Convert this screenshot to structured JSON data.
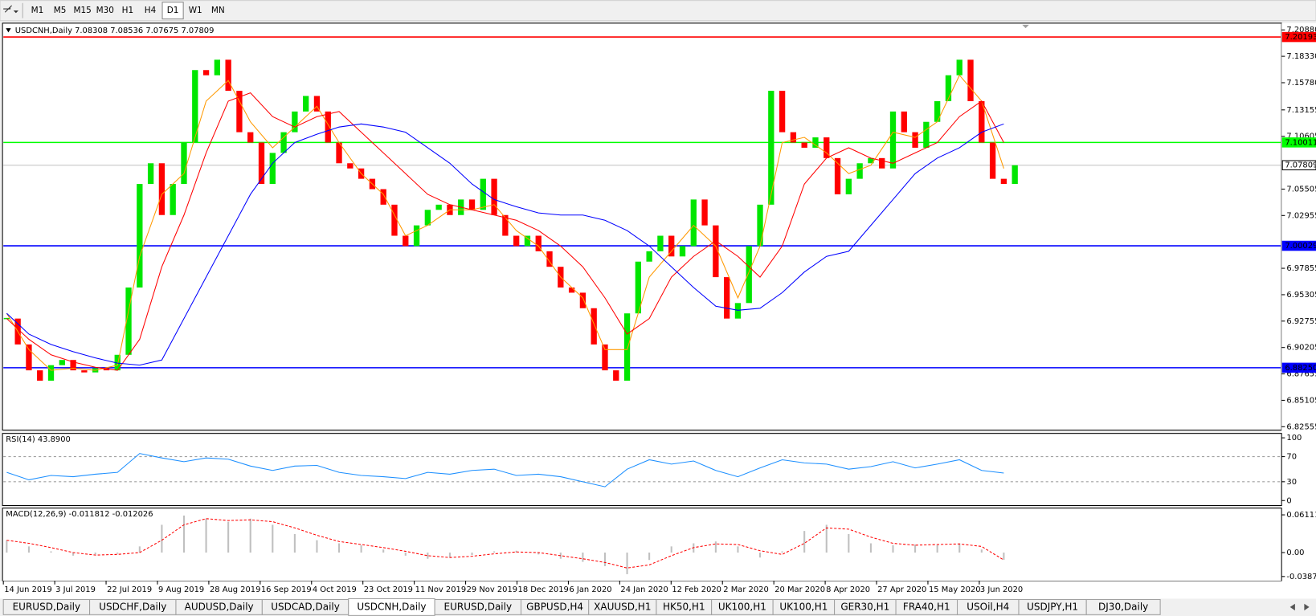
{
  "toolbar": {
    "timeframes": [
      "M1",
      "M5",
      "M15",
      "M30",
      "H1",
      "H4",
      "D1",
      "W1",
      "MN"
    ],
    "active": 6
  },
  "tabs": {
    "items": [
      "EURUSD,Daily",
      "USDCHF,Daily",
      "AUDUSD,Daily",
      "USDCAD,Daily",
      "USDCNH,Daily",
      "EURUSD,Daily",
      "GBPUSD,H4",
      "XAUUSD,H1",
      "HK50,H1",
      "UK100,H1",
      "UK100,H1",
      "GER30,H1",
      "FRA40,H1",
      "USOil,H4",
      "USDJPY,H1",
      "DJ30,Daily"
    ],
    "active": 4
  },
  "chart_data": [
    {
      "type": "candlestick",
      "header": "USDCNH,Daily  7.08308 7.08536 7.07675 7.07809",
      "up_color": "#00e600",
      "down_color": "#ff0000",
      "closes": [
        6.93,
        6.905,
        6.88,
        6.87,
        6.885,
        6.89,
        6.88,
        6.878,
        6.882,
        6.88,
        6.895,
        6.96,
        7.06,
        7.08,
        7.03,
        7.06,
        7.1,
        7.17,
        7.165,
        7.18,
        7.15,
        7.11,
        7.1,
        7.06,
        7.09,
        7.11,
        7.13,
        7.145,
        7.13,
        7.1,
        7.08,
        7.075,
        7.065,
        7.055,
        7.04,
        7.01,
        7.0,
        7.02,
        7.035,
        7.04,
        7.03,
        7.045,
        7.035,
        7.065,
        7.03,
        7.01,
        7.0,
        7.01,
        6.995,
        6.98,
        6.96,
        6.955,
        6.94,
        6.905,
        6.88,
        6.87,
        6.935,
        6.985,
        6.995,
        7.01,
        6.99,
        7.0,
        7.045,
        7.02,
        6.97,
        6.93,
        6.945,
        7.0,
        7.04,
        7.15,
        7.11,
        7.1,
        7.095,
        7.105,
        7.085,
        7.05,
        7.065,
        7.08,
        7.085,
        7.075,
        7.13,
        7.11,
        7.095,
        7.12,
        7.14,
        7.165,
        7.18,
        7.14,
        7.1,
        7.065,
        7.06,
        7.07809
      ],
      "moving_averages": [
        {
          "color": "#ff9900",
          "values": [
            6.935,
            6.9,
            6.88,
            6.882,
            6.88,
            6.885,
            6.99,
            7.05,
            7.07,
            7.14,
            7.16,
            7.12,
            7.095,
            7.115,
            7.135,
            7.1,
            7.07,
            7.05,
            7.01,
            7.02,
            7.035,
            7.035,
            7.04,
            7.015,
            7.0,
            6.97,
            6.95,
            6.9,
            6.9,
            6.97,
            6.995,
            7.02,
            7.0,
            6.95,
            7.0,
            7.1,
            7.105,
            7.09,
            7.07,
            7.078,
            7.11,
            7.105,
            7.12,
            7.165,
            7.14,
            7.075
          ]
        },
        {
          "color": "#ff0000",
          "values": [
            6.93,
            6.91,
            6.895,
            6.888,
            6.883,
            6.88,
            6.91,
            6.98,
            7.03,
            7.09,
            7.14,
            7.148,
            7.125,
            7.115,
            7.125,
            7.13,
            7.11,
            7.09,
            7.07,
            7.05,
            7.04,
            7.035,
            7.03,
            7.025,
            7.015,
            7.0,
            6.98,
            6.95,
            6.915,
            6.93,
            6.97,
            6.99,
            7.005,
            6.99,
            6.97,
            7.0,
            7.06,
            7.085,
            7.095,
            7.085,
            7.08,
            7.09,
            7.1,
            7.125,
            7.14,
            7.1
          ]
        },
        {
          "color": "#0000ff",
          "values": [
            6.935,
            6.915,
            6.905,
            6.898,
            6.892,
            6.887,
            6.885,
            6.89,
            6.93,
            6.97,
            7.01,
            7.05,
            7.08,
            7.1,
            7.108,
            7.115,
            7.118,
            7.115,
            7.11,
            7.095,
            7.08,
            7.06,
            7.045,
            7.038,
            7.032,
            7.03,
            7.03,
            7.025,
            7.015,
            7.0,
            6.98,
            6.96,
            6.942,
            6.938,
            6.94,
            6.955,
            6.975,
            6.99,
            6.995,
            7.02,
            7.045,
            7.07,
            7.085,
            7.095,
            7.11,
            7.118
          ]
        }
      ],
      "ylim": [
        6.8223,
        7.2145
      ],
      "yticks": [
        {
          "value": 7.2088,
          "label": "7.20880"
        },
        {
          "value": 7.1833,
          "label": "7.18330"
        },
        {
          "value": 7.1578,
          "label": "7.15780"
        },
        7.13155,
        7.10605,
        7.05505,
        7.02955,
        6.97855,
        6.95305,
        6.92755,
        6.90205,
        6.87655,
        6.85105,
        6.82555
      ],
      "levels": [
        {
          "value": 7.20193,
          "label": "7.20193",
          "color": "#ff0000",
          "text_color": "#ffffff"
        },
        {
          "value": 7.10011,
          "label": "7.10011",
          "color": "#00ff00",
          "text_color": "#ffffff"
        },
        {
          "value": 7.07809,
          "label": "7.07809",
          "color": "#c0c0c0",
          "text_color": "#000000"
        },
        {
          "value": 7.00029,
          "label": "7.00029",
          "color": "#0000ff",
          "text_color": "#ffffff"
        },
        {
          "value": 6.8825,
          "label": "6.88250",
          "color": "#0000ff",
          "text_color": "#ffffff"
        }
      ],
      "x_labels": [
        "14 Jun 2019",
        "3 Jul 2019",
        "22 Jul 2019",
        "9 Aug 2019",
        "28 Aug 2019",
        "16 Sep 2019",
        "4 Oct 2019",
        "23 Oct 2019",
        "11 Nov 2019",
        "29 Nov 2019",
        "18 Dec 2019",
        "6 Jan 2020",
        "24 Jan 2020",
        "12 Feb 2020",
        "2 Mar 2020",
        "20 Mar 2020",
        "8 Apr 2020",
        "27 Apr 2020",
        "15 May 2020",
        "3 Jun 2020"
      ]
    },
    {
      "type": "line",
      "header": "RSI(14) 43.8900",
      "color": "#1e90ff",
      "values": [
        45,
        33,
        40,
        38,
        42,
        45,
        75,
        68,
        62,
        68,
        66,
        55,
        48,
        55,
        56,
        45,
        40,
        38,
        35,
        45,
        42,
        48,
        50,
        40,
        42,
        38,
        30,
        22,
        50,
        65,
        58,
        63,
        48,
        38,
        52,
        65,
        60,
        58,
        50,
        54,
        62,
        52,
        58,
        65,
        48,
        43.89
      ],
      "ylim": [
        -8,
        107
      ],
      "yticks": [
        100,
        70,
        30,
        0
      ],
      "levels": [
        70,
        30
      ]
    },
    {
      "type": "macd",
      "header": "MACD(12,26,9) -0.011812 -0.012026",
      "histogram_color": "#c0c0c0",
      "signal_color": "#ff0000",
      "histogram": [
        0.02,
        0.01,
        0.002,
        -0.005,
        -0.003,
        -0.002,
        0.01,
        0.045,
        0.06,
        0.055,
        0.05,
        0.055,
        0.045,
        0.03,
        0.02,
        0.015,
        0.012,
        0.005,
        -0.005,
        -0.01,
        -0.008,
        -0.004,
        0.002,
        0.003,
        -0.003,
        -0.01,
        -0.015,
        -0.022,
        -0.035,
        -0.012,
        0.01,
        0.015,
        0.018,
        0.01,
        -0.008,
        0.002,
        0.035,
        0.045,
        0.03,
        0.015,
        0.012,
        0.013,
        0.012,
        0.015,
        0.005,
        -0.011812
      ],
      "signal": [
        0.02,
        0.015,
        0.008,
        0.0,
        -0.004,
        -0.003,
        0.0,
        0.02,
        0.045,
        0.055,
        0.052,
        0.053,
        0.05,
        0.04,
        0.028,
        0.018,
        0.013,
        0.008,
        0.002,
        -0.005,
        -0.008,
        -0.006,
        -0.002,
        0.001,
        0.0,
        -0.005,
        -0.01,
        -0.016,
        -0.025,
        -0.02,
        -0.005,
        0.008,
        0.014,
        0.013,
        0.003,
        -0.003,
        0.015,
        0.04,
        0.038,
        0.025,
        0.015,
        0.012,
        0.013,
        0.014,
        0.01,
        -0.012026
      ],
      "ylim": [
        -0.0462,
        0.0707
      ],
      "yticks": [
        0.061119,
        {
          "value": 0,
          "label": "0.00"
        },
        -0.038777
      ]
    }
  ]
}
